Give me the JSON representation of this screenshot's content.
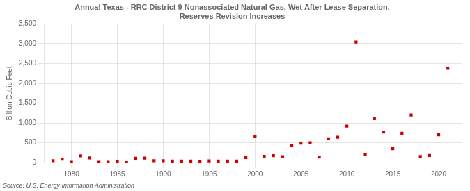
{
  "chart_data": {
    "type": "scatter",
    "title": "Annual Texas - RRC District 9 Nonassociated Natural Gas, Wet After Lease Separation,\nReserves Revision Increases",
    "ylabel": "Billion Cubic Feet",
    "annotation": "Source: U.S. Energy Information Administration",
    "x": [
      1978,
      1979,
      1980,
      1981,
      1982,
      1983,
      1984,
      1985,
      1986,
      1987,
      1988,
      1989,
      1990,
      1991,
      1992,
      1993,
      1994,
      1995,
      1996,
      1997,
      1998,
      1999,
      2000,
      2001,
      2002,
      2003,
      2004,
      2005,
      2006,
      2007,
      2008,
      2009,
      2010,
      2011,
      2012,
      2013,
      2014,
      2015,
      2016,
      2017,
      2018,
      2019,
      2020,
      2021
    ],
    "values": [
      50,
      90,
      10,
      170,
      120,
      10,
      10,
      25,
      0,
      110,
      115,
      50,
      50,
      40,
      40,
      40,
      30,
      45,
      40,
      40,
      40,
      130,
      660,
      160,
      175,
      150,
      430,
      490,
      500,
      140,
      600,
      640,
      920,
      3040,
      200,
      1110,
      770,
      350,
      740,
      1200,
      155,
      180,
      700,
      2380
    ],
    "color": "#cc0000",
    "marker": "square",
    "xlim": [
      1977,
      2022.5
    ],
    "xticks": [
      1980,
      1985,
      1990,
      1995,
      2000,
      2005,
      2010,
      2015,
      2020
    ],
    "ylim": [
      0,
      3500
    ],
    "yticks": [
      0,
      500,
      {
        "value": 1000,
        "label": "1,000"
      },
      {
        "value": 1500,
        "label": "1,500"
      },
      {
        "value": 2000,
        "label": "2,000"
      },
      {
        "value": 2500,
        "label": "2,500"
      },
      {
        "value": 3000,
        "label": "3,000"
      },
      {
        "value": 3500,
        "label": "3,500"
      }
    ],
    "grid": true
  }
}
